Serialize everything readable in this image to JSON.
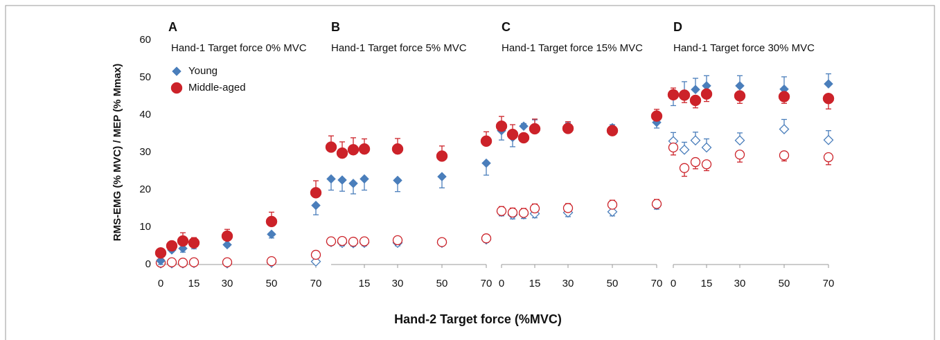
{
  "chart_data": {
    "type": "scatter",
    "ylabel": "RMS-EMG (% MVC) / MEP (% Mmax)",
    "xlabel": "Hand-2 Target force (%MVC)",
    "ylim": [
      0,
      60
    ],
    "yticks": [
      0,
      10,
      20,
      30,
      40,
      50,
      60
    ],
    "legend": "top-left",
    "series": [
      {
        "name": "Young",
        "color": "#4a7ebb",
        "marker": "diamond"
      },
      {
        "name": "Middle-aged",
        "color": "#cc2229",
        "marker": "circle"
      }
    ],
    "panels": [
      {
        "letter": "A",
        "title": "Hand-1 Target force 0% MVC",
        "x": [
          0,
          5,
          10,
          15,
          30,
          50,
          70
        ],
        "xlim": [
          0,
          70
        ],
        "xticks": [
          0,
          15,
          30,
          50,
          70
        ],
        "data": [
          {
            "values": [
              1.0,
              3.9,
              4.3,
              5.2,
              5.3,
              8.1,
              15.8
            ],
            "errors": [
              1.0,
              0.5,
              1.0,
              1.0,
              0.5,
              1.0,
              2.5
            ],
            "values_open": [
              0.3,
              0.3,
              0.3,
              0.4,
              0.3,
              0.5,
              0.8
            ],
            "errors_open": [
              0.3,
              0.3,
              0.3,
              0.3,
              0.3,
              0.3,
              0.5
            ]
          },
          {
            "values": [
              3.1,
              5.0,
              6.3,
              5.8,
              7.6,
              11.5,
              19.2
            ],
            "errors": [
              0.8,
              0.5,
              2.2,
              1.4,
              1.8,
              2.5,
              3.2
            ],
            "values_open": [
              0.5,
              0.6,
              0.5,
              0.6,
              0.6,
              0.9,
              2.6
            ],
            "errors_open": [
              0.3,
              0.3,
              0.3,
              0.3,
              0.3,
              0.5,
              1.0
            ]
          }
        ]
      },
      {
        "letter": "B",
        "title": "Hand-1 Target force 5% MVC",
        "x": [
          0,
          5,
          10,
          15,
          30,
          50,
          70
        ],
        "xlim": [
          0,
          70
        ],
        "xticks": [
          15,
          30,
          50,
          70
        ],
        "data": [
          {
            "values": [
              22.9,
              22.6,
              21.7,
              22.9,
              22.5,
              23.5,
              27.1
            ],
            "errors": [
              3.0,
              3.0,
              2.8,
              3.0,
              3.0,
              3.0,
              3.2
            ],
            "values_open": [
              6.0,
              5.8,
              5.7,
              5.8,
              5.8,
              5.8,
              6.7
            ],
            "errors_open": [
              0.8,
              0.8,
              0.8,
              0.8,
              0.8,
              0.8,
              0.8
            ]
          },
          {
            "values": [
              31.4,
              29.8,
              30.7,
              30.9,
              30.9,
              29.0,
              33.0
            ],
            "errors": [
              3.0,
              3.0,
              3.2,
              2.7,
              2.8,
              2.7,
              2.5
            ],
            "values_open": [
              6.2,
              6.3,
              6.1,
              6.2,
              6.5,
              6.0,
              7.0
            ],
            "errors_open": [
              0.6,
              0.6,
              0.6,
              0.6,
              0.6,
              0.6,
              0.6
            ]
          }
        ]
      },
      {
        "letter": "C",
        "title": "Hand-1 Target force 15% MVC",
        "x": [
          0,
          5,
          10,
          15,
          30,
          50,
          70
        ],
        "xlim": [
          0,
          70
        ],
        "xticks": [
          0,
          15,
          30,
          50,
          70
        ],
        "data": [
          {
            "values": [
              35.8,
              34.0,
              37.0,
              36.3,
              36.4,
              36.6,
              38.0
            ],
            "errors": [
              2.5,
              2.5,
              0.7,
              2.4,
              1.5,
              0.8,
              1.5
            ],
            "values_open": [
              14.1,
              13.3,
              13.4,
              13.6,
              13.9,
              14.1,
              15.9
            ],
            "errors_open": [
              1.1,
              1.1,
              1.1,
              1.1,
              1.1,
              1.1,
              1.1
            ]
          },
          {
            "values": [
              37.0,
              34.8,
              33.9,
              36.3,
              36.4,
              35.8,
              39.7
            ],
            "errors": [
              2.6,
              2.6,
              0.7,
              2.6,
              1.8,
              1.0,
              1.8
            ],
            "values_open": [
              14.3,
              13.9,
              13.8,
              15.0,
              15.1,
              16.0,
              16.2
            ],
            "errors_open": [
              1.2,
              1.2,
              1.2,
              1.2,
              1.2,
              1.2,
              1.2
            ]
          }
        ]
      },
      {
        "letter": "D",
        "title": "Hand-1 Target force 30% MVC",
        "x": [
          0,
          5,
          10,
          15,
          30,
          50,
          70
        ],
        "xlim": [
          0,
          70
        ],
        "xticks": [
          0,
          15,
          30,
          50,
          70
        ],
        "data": [
          {
            "values": [
              45.3,
              45.6,
              46.8,
              47.8,
              47.8,
              46.9,
              48.3
            ],
            "errors": [
              2.8,
              3.3,
              3.0,
              2.7,
              2.7,
              3.3,
              2.7
            ],
            "values_open": [
              33.0,
              30.7,
              33.2,
              31.3,
              33.2,
              36.2,
              33.3
            ],
            "errors_open": [
              2.3,
              2.0,
              2.2,
              2.3,
              2.0,
              2.6,
              2.5
            ]
          },
          {
            "values": [
              45.4,
              45.3,
              43.9,
              45.6,
              45.1,
              44.9,
              44.4
            ],
            "errors": [
              1.8,
              2.0,
              2.0,
              2.0,
              2.0,
              1.8,
              2.8
            ],
            "values_open": [
              31.3,
              25.8,
              27.4,
              26.8,
              29.4,
              29.2,
              28.7
            ],
            "errors_open": [
              2.0,
              2.2,
              1.8,
              1.7,
              2.0,
              1.5,
              2.0
            ]
          }
        ]
      }
    ]
  }
}
